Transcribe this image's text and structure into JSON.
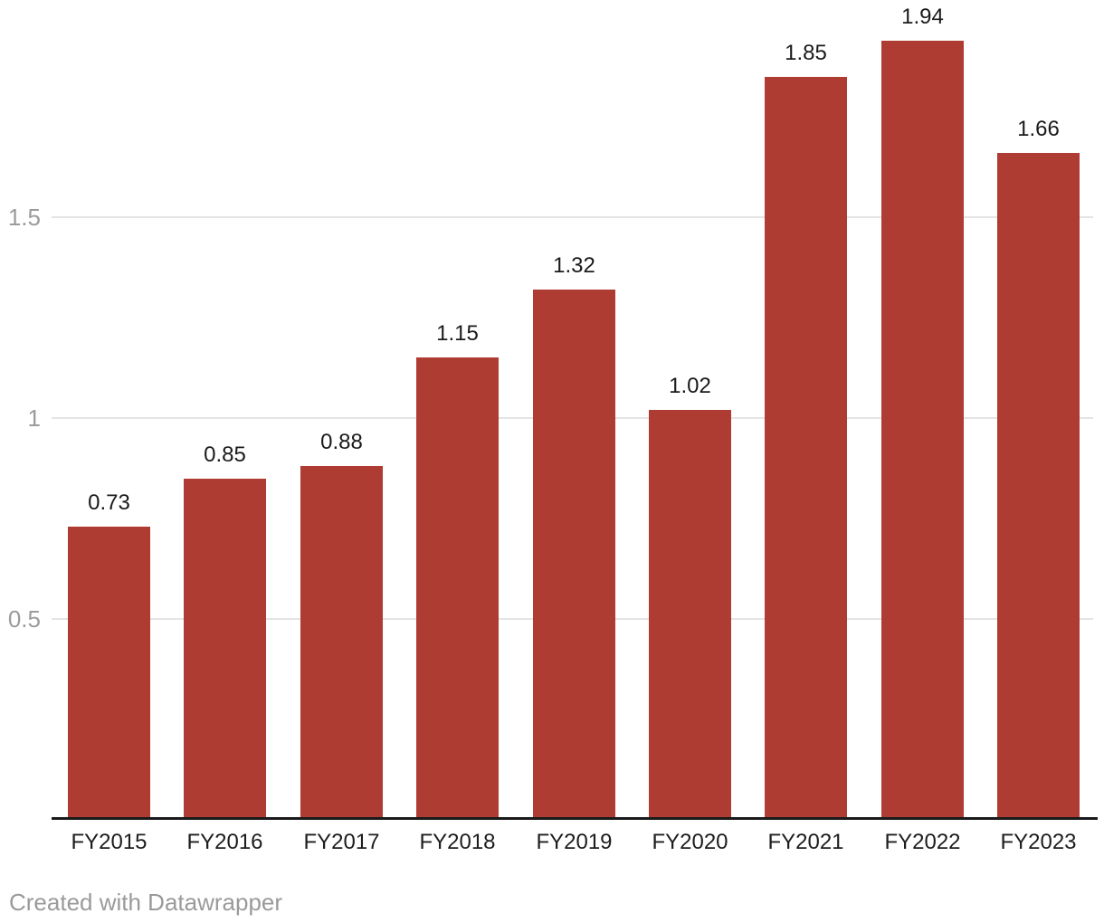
{
  "chart_data": {
    "type": "bar",
    "categories": [
      "FY2015",
      "FY2016",
      "FY2017",
      "FY2018",
      "FY2019",
      "FY2020",
      "FY2021",
      "FY2022",
      "FY2023"
    ],
    "values": [
      0.73,
      0.85,
      0.88,
      1.15,
      1.32,
      1.02,
      1.85,
      1.94,
      1.66
    ],
    "value_labels": [
      "0.73",
      "0.85",
      "0.88",
      "1.15",
      "1.32",
      "1.02",
      "1.85",
      "1.94",
      "1.66"
    ],
    "title": "",
    "xlabel": "",
    "ylabel": "",
    "ylim": [
      0,
      2.0
    ],
    "yticks": [
      {
        "value": 0.5,
        "label": "0.5"
      },
      {
        "value": 1.0,
        "label": "1"
      },
      {
        "value": 1.5,
        "label": "1.5"
      }
    ],
    "grid": true,
    "legend": false,
    "bar_labels_position": "above"
  },
  "footer": {
    "credit": "Created with Datawrapper"
  },
  "colors": {
    "bar": "#af3c32",
    "grid": "#e4e4e4",
    "axis": "#1a1a1a",
    "tick_label": "#9c9c9c",
    "value_label": "#1a1a1a",
    "category_label": "#1d1d1d",
    "credit": "#9a9a9a",
    "background": "#ffffff"
  }
}
